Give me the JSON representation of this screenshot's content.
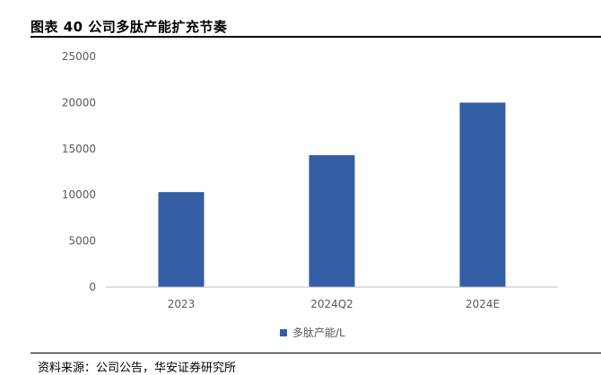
{
  "header": {
    "title": "图表 40 公司多肽产能扩充节奏"
  },
  "footer": {
    "source": "资料来源：公司公告，华安证券研究所"
  },
  "colors": {
    "bar": "#345EA3",
    "axis": "#bfbfbf",
    "text": "#595959"
  },
  "chart_data": {
    "type": "bar",
    "title": "",
    "xlabel": "",
    "ylabel": "",
    "categories": [
      "2023",
      "2024Q2",
      "2024E"
    ],
    "series": [
      {
        "name": "多肽产能/L",
        "values": [
          10300,
          14300,
          20000
        ]
      }
    ],
    "ylim": [
      0,
      25000
    ],
    "yticks": [
      0,
      5000,
      10000,
      15000,
      20000,
      25000
    ],
    "grid": false,
    "legend": "bottom-center"
  }
}
